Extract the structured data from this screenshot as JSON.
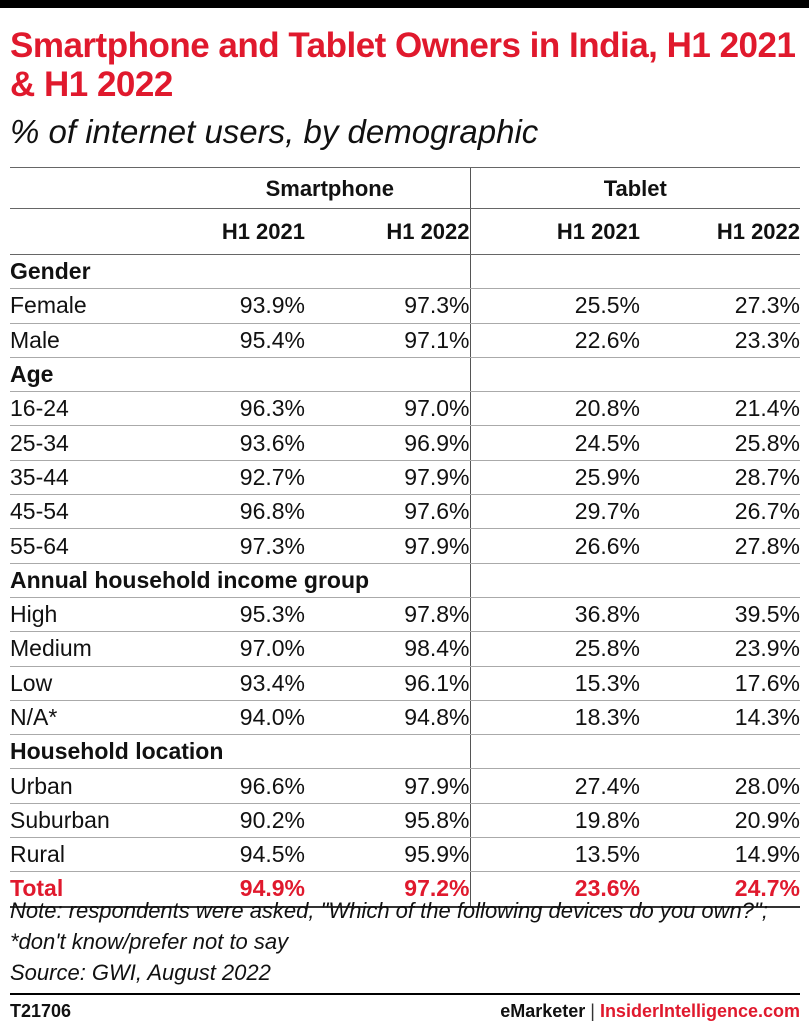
{
  "chart_data": {
    "type": "table",
    "title": "Smartphone and Tablet Owners in India, H1 2021 & H1 2022",
    "subtitle": "% of internet users, by demographic",
    "column_groups": [
      "Smartphone",
      "Tablet"
    ],
    "columns": [
      "H1 2021",
      "H1 2022",
      "H1 2021",
      "H1 2022"
    ],
    "sections": [
      {
        "name": "Gender",
        "rows": [
          {
            "label": "Female",
            "values": [
              "93.9%",
              "97.3%",
              "25.5%",
              "27.3%"
            ]
          },
          {
            "label": "Male",
            "values": [
              "95.4%",
              "97.1%",
              "22.6%",
              "23.3%"
            ]
          }
        ]
      },
      {
        "name": "Age",
        "rows": [
          {
            "label": "16-24",
            "values": [
              "96.3%",
              "97.0%",
              "20.8%",
              "21.4%"
            ]
          },
          {
            "label": "25-34",
            "values": [
              "93.6%",
              "96.9%",
              "24.5%",
              "25.8%"
            ]
          },
          {
            "label": "35-44",
            "values": [
              "92.7%",
              "97.9%",
              "25.9%",
              "28.7%"
            ]
          },
          {
            "label": "45-54",
            "values": [
              "96.8%",
              "97.6%",
              "29.7%",
              "26.7%"
            ]
          },
          {
            "label": "55-64",
            "values": [
              "97.3%",
              "97.9%",
              "26.6%",
              "27.8%"
            ]
          }
        ]
      },
      {
        "name": "Annual household income group",
        "rows": [
          {
            "label": "High",
            "values": [
              "95.3%",
              "97.8%",
              "36.8%",
              "39.5%"
            ]
          },
          {
            "label": "Medium",
            "values": [
              "97.0%",
              "98.4%",
              "25.8%",
              "23.9%"
            ]
          },
          {
            "label": "Low",
            "values": [
              "93.4%",
              "96.1%",
              "15.3%",
              "17.6%"
            ]
          },
          {
            "label": "N/A*",
            "values": [
              "94.0%",
              "94.8%",
              "18.3%",
              "14.3%"
            ]
          }
        ]
      },
      {
        "name": "Household location",
        "rows": [
          {
            "label": "Urban",
            "values": [
              "96.6%",
              "97.9%",
              "27.4%",
              "28.0%"
            ]
          },
          {
            "label": "Suburban",
            "values": [
              "90.2%",
              "95.8%",
              "19.8%",
              "20.9%"
            ]
          },
          {
            "label": "Rural",
            "values": [
              "94.5%",
              "95.9%",
              "13.5%",
              "14.9%"
            ]
          }
        ]
      }
    ],
    "total": {
      "label": "Total",
      "values": [
        "94.9%",
        "97.2%",
        "23.6%",
        "24.7%"
      ]
    },
    "note": "Note: respondents were asked, \"Which of the following devices do you own?\"; *don't know/prefer not to say",
    "source": "Source: GWI, August 2022"
  },
  "footer": {
    "code": "T21706",
    "brand_left": "eMarketer",
    "separator": "|",
    "brand_right": "InsiderIntelligence.com"
  },
  "colors": {
    "accent": "#e0192d",
    "text": "#111111"
  }
}
